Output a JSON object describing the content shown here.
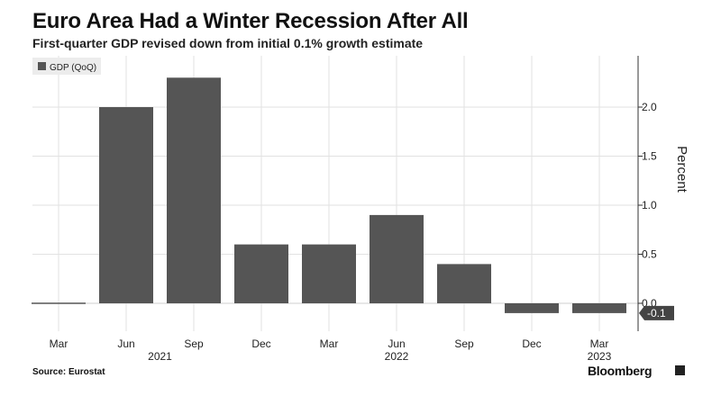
{
  "header": {
    "title": "Euro Area Had a Winter Recession After All",
    "subtitle": "First-quarter GDP revised down from initial 0.1% growth estimate"
  },
  "footer": {
    "source": "Source: Eurostat",
    "brand": "Bloomberg"
  },
  "chart_data": {
    "type": "bar",
    "categories": [
      "Mar",
      "Jun",
      "Sep",
      "Dec",
      "Mar",
      "Jun",
      "Sep",
      "Dec",
      "Mar"
    ],
    "year_labels": [
      {
        "label": "2021",
        "under_index": 1.5
      },
      {
        "label": "2022",
        "under_index": 5
      },
      {
        "label": "2023",
        "under_index": 8
      }
    ],
    "series": [
      {
        "name": "GDP (QoQ)",
        "values": [
          0.0,
          2.0,
          2.3,
          0.6,
          0.6,
          0.9,
          0.4,
          -0.1,
          -0.1
        ],
        "color": "#555555"
      }
    ],
    "ylabel": "Percent",
    "ylim": [
      -0.35,
      2.5
    ],
    "yticks": [
      "0.0",
      "0.5",
      "1.0",
      "1.5",
      "2.0"
    ],
    "last_value_label": "-0.1",
    "grid": true,
    "legend_position": "top-left",
    "colors": {
      "bar": "#555555",
      "grid": "#e2e2e2",
      "legend_bg": "#ececec",
      "text": "#111111"
    }
  }
}
